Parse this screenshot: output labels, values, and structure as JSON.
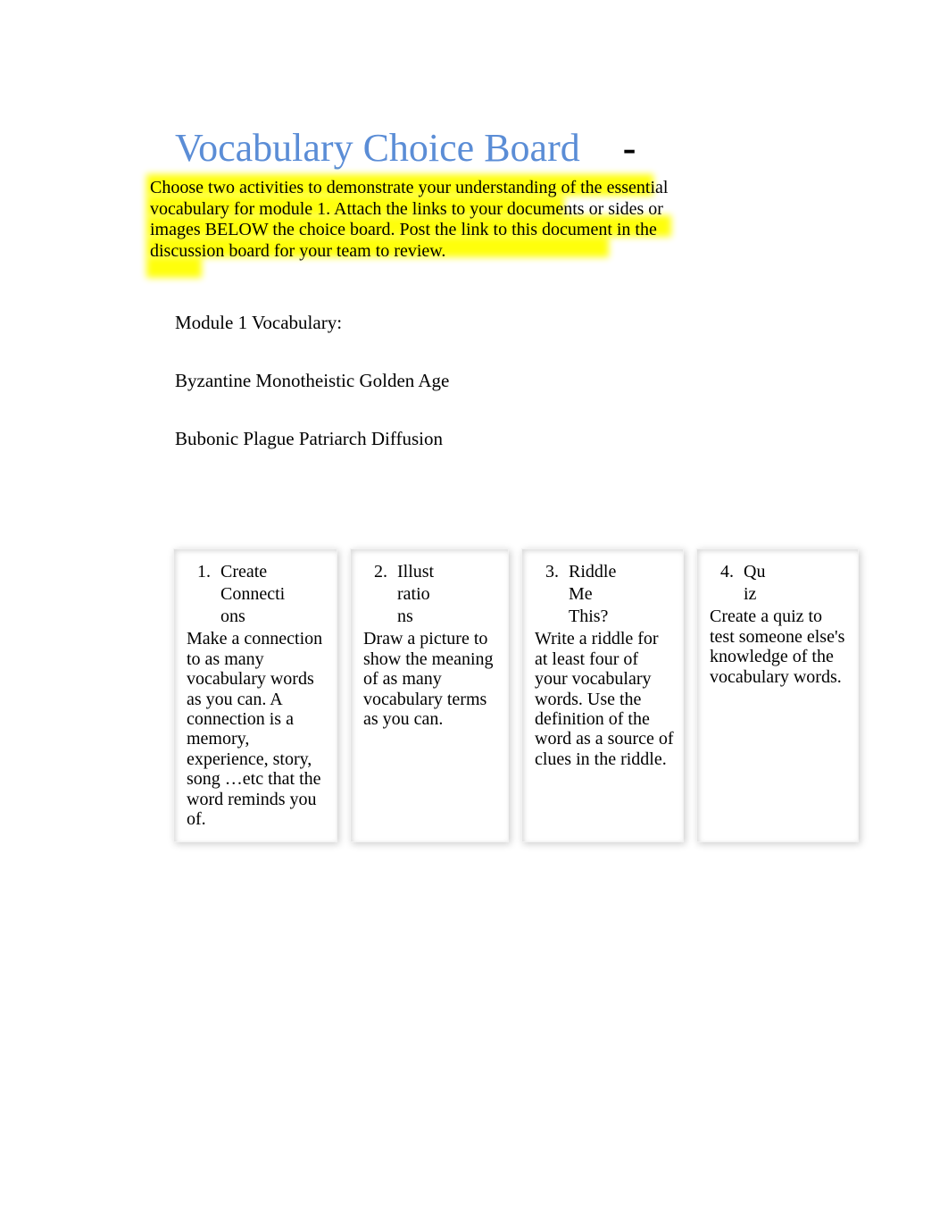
{
  "title": "Vocabulary Choice Board",
  "dash": "-",
  "instructions": "Choose two activities to demonstrate your understanding of the essential vocabulary for module 1. Attach the links to your documents or sides or images BELOW the choice board. Post the link to this document in the discussion board for your team to review.",
  "section_heading": "Module 1 Vocabulary:",
  "vocab_line1": "Byzantine Monotheistic Golden Age",
  "vocab_line2": "Bubonic Plague Patriarch Diffusion",
  "choices": [
    {
      "num": "1.",
      "title_line1": "Create",
      "title_line2": "Connecti",
      "title_line3": "ons",
      "desc": "Make a connection to as many vocabulary words as you can. A connection is a memory, experience, story, song  …etc that the word reminds you of."
    },
    {
      "num": "2.",
      "title_line1": "Illust",
      "title_line2": "ratio",
      "title_line3": "ns",
      "desc": "Draw a picture to show the meaning of as many vocabulary terms as you can."
    },
    {
      "num": "3.",
      "title_line1": "Riddle",
      "title_line2": "Me",
      "title_line3": "This?",
      "desc": "Write a riddle for at least four of your vocabulary words. Use the definition of the word as a source of clues in the riddle."
    },
    {
      "num": "4.",
      "title_line1": "Qu",
      "title_line2": "iz",
      "title_line3": "",
      "desc": "Create a quiz to test someone else's knowledge of the vocabulary words."
    }
  ],
  "colors": {
    "title_color": "#5b8dd6",
    "highlight_color": "#ffff00",
    "text_color": "#000000",
    "background": "#ffffff"
  }
}
